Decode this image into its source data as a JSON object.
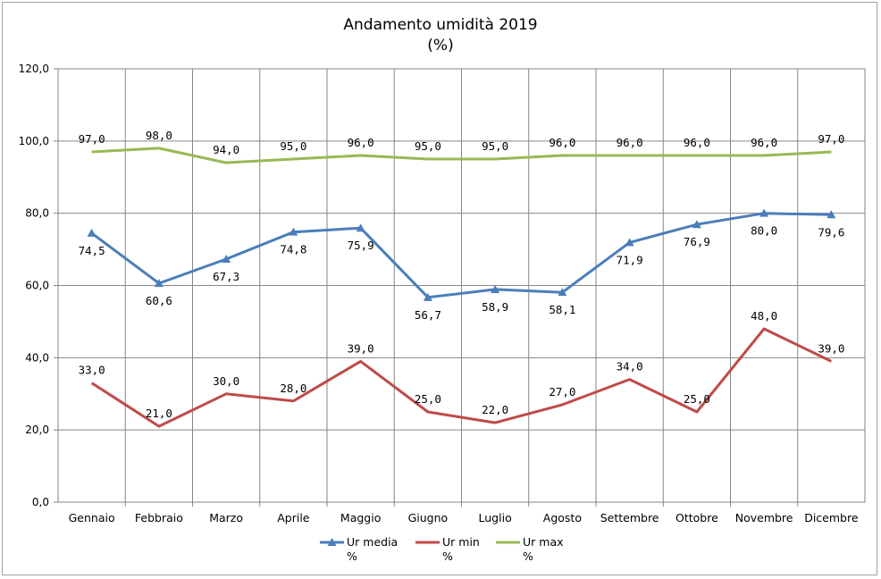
{
  "chart_data": {
    "type": "line",
    "title": "Andamento umidità 2019",
    "subtitle": "(%)",
    "categories": [
      "Gennaio",
      "Febbraio",
      "Marzo",
      "Aprile",
      "Maggio",
      "Giugno",
      "Luglio",
      "Agosto",
      "Settembre",
      "Ottobre",
      "Novembre",
      "Dicembre"
    ],
    "ylim": [
      0,
      120
    ],
    "yticks": [
      "0,0",
      "20,0",
      "40,0",
      "60,0",
      "80,0",
      "100,0",
      "120,0"
    ],
    "ytick_values": [
      0,
      20,
      40,
      60,
      80,
      100,
      120
    ],
    "grid": true,
    "legend_position": "bottom",
    "series": [
      {
        "name": "Ur media %",
        "color": "#4a7ebb",
        "marker": "triangle",
        "label_position": "below",
        "values": [
          74.5,
          60.6,
          67.3,
          74.8,
          75.9,
          56.7,
          58.9,
          58.1,
          71.9,
          76.9,
          80.0,
          79.6
        ],
        "labels": [
          "74,5",
          "60,6",
          "67,3",
          "74,8",
          "75,9",
          "56,7",
          "58,9",
          "58,1",
          "71,9",
          "76,9",
          "80,0",
          "79,6"
        ]
      },
      {
        "name": "Ur min %",
        "color": "#be4b48",
        "marker": "none",
        "label_position": "above",
        "values": [
          33.0,
          21.0,
          30.0,
          28.0,
          39.0,
          25.0,
          22.0,
          27.0,
          34.0,
          25.0,
          48.0,
          39.0
        ],
        "labels": [
          "33,0",
          "21,0",
          "30,0",
          "28,0",
          "39,0",
          "25,0",
          "22,0",
          "27,0",
          "34,0",
          "25,0",
          "48,0",
          "39,0"
        ]
      },
      {
        "name": "Ur max %",
        "color": "#98b954",
        "marker": "none",
        "label_position": "above",
        "values": [
          97.0,
          98.0,
          94.0,
          95.0,
          96.0,
          95.0,
          95.0,
          96.0,
          96.0,
          96.0,
          96.0,
          97.0
        ],
        "labels": [
          "97,0",
          "98,0",
          "94,0",
          "95,0",
          "96,0",
          "95,0",
          "95,0",
          "96,0",
          "96,0",
          "96,0",
          "96,0",
          "97,0"
        ]
      }
    ],
    "legend": [
      {
        "line1": "Ur media",
        "line2": "%"
      },
      {
        "line1": "Ur min",
        "line2": "%"
      },
      {
        "line1": "Ur max",
        "line2": "%"
      }
    ]
  }
}
